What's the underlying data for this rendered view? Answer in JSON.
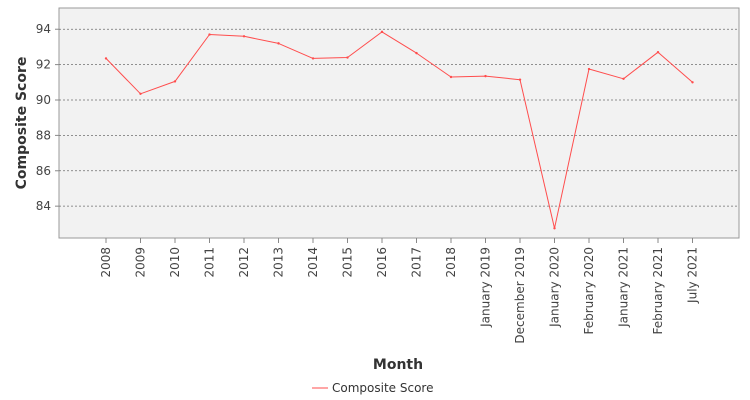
{
  "chart_data": {
    "type": "line",
    "xlabel": "Month",
    "ylabel": "Composite Score",
    "categories": [
      "2008",
      "2009",
      "2010",
      "2011",
      "2012",
      "2013",
      "2014",
      "2015",
      "2016",
      "2017",
      "2018",
      "January 2019",
      "December 2019",
      "January 2020",
      "February 2020",
      "January 2021",
      "February 2021",
      "July 2021"
    ],
    "series": [
      {
        "name": "Composite Score",
        "color": "#ff4d4d",
        "values": [
          92.35,
          90.35,
          91.05,
          93.7,
          93.6,
          93.2,
          92.35,
          92.4,
          93.85,
          92.65,
          91.3,
          91.35,
          91.15,
          82.75,
          91.75,
          91.2,
          92.7,
          91.0
        ]
      }
    ],
    "ylim": [
      82.2,
      95.2
    ],
    "yticks": [
      84,
      86,
      88,
      90,
      92,
      94
    ],
    "grid": {
      "y": true,
      "x": false
    },
    "legend": "bottom-center"
  }
}
